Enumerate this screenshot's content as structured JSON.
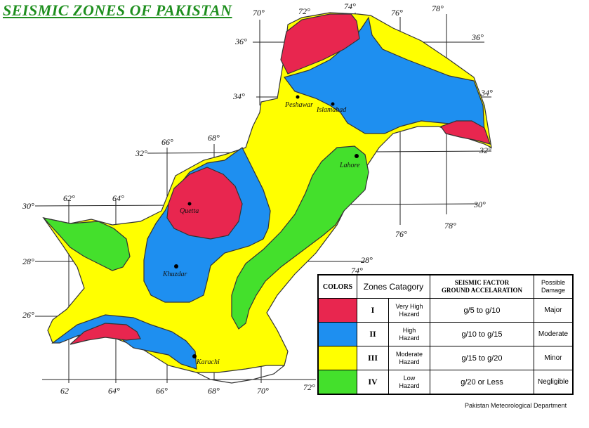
{
  "title": "SEISMIC ZONES OF PAKISTAN",
  "colors": {
    "zone_1": "#e8264f",
    "zone_2": "#1e8ff0",
    "zone_3": "#ffff00",
    "zone_4": "#44e02c",
    "title": "#1f8f1f"
  },
  "coordinates": {
    "top": [
      "70°",
      "72°",
      "74°",
      "76°",
      "78°"
    ],
    "right": [
      "36°",
      "34°",
      "32°",
      "30°"
    ],
    "left": [
      "36°",
      "34°",
      "32°",
      "30°",
      "28°",
      "26°"
    ],
    "mid_top": [
      "66°",
      "68°"
    ],
    "mid_left": [
      "62°",
      "64°"
    ],
    "lower_right": [
      "76°",
      "78°",
      "28°",
      "74°"
    ],
    "bottom": [
      "62",
      "64°",
      "66°",
      "68°",
      "70°",
      "72°"
    ]
  },
  "cities": [
    "Peshawar",
    "Islamabad",
    "Lahore",
    "Quetta",
    "Khuzdar",
    "Karachi"
  ],
  "legend": {
    "headers": {
      "colors": "COLORS",
      "zones": "Zones Catagory",
      "factor_line1": "SEISMIC FACTOR",
      "factor_line2": "GROUND ACCELARATION",
      "damage_line1": "Possible",
      "damage_line2": "Damage"
    },
    "rows": [
      {
        "roman": "I",
        "hazard_line1": "Very High",
        "hazard_line2": "Hazard",
        "factor": "g/5 to g/10",
        "damage": "Major"
      },
      {
        "roman": "II",
        "hazard_line1": "High",
        "hazard_line2": "Hazard",
        "factor": "g/10 to g/15",
        "damage": "Moderate"
      },
      {
        "roman": "III",
        "hazard_line1": "Moderate",
        "hazard_line2": "Hazard",
        "factor": "g/15 to g/20",
        "damage": "Minor"
      },
      {
        "roman": "IV",
        "hazard_line1": "Low",
        "hazard_line2": "Hazard",
        "factor": "g/20 or Less",
        "damage": "Negligible"
      }
    ]
  },
  "credit": "Pakistan Meteorological Department"
}
